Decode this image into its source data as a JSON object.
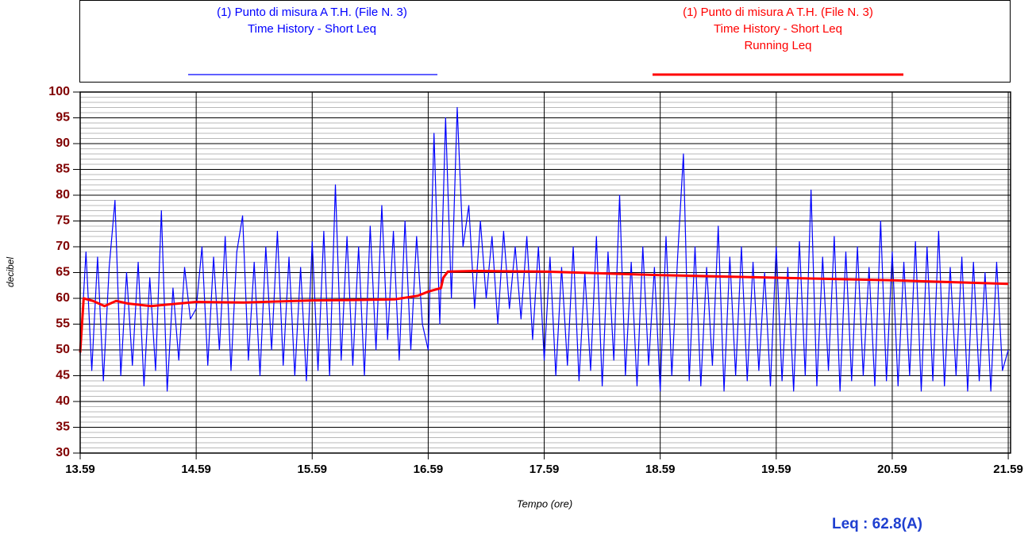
{
  "chart_data": {
    "type": "line",
    "y_label": "decibel",
    "x_label": "Tempo (ore)",
    "annotation": "Leq : 62.8(A)",
    "xlim": [
      13.59,
      21.61
    ],
    "xticks": [
      13.59,
      14.59,
      15.59,
      16.59,
      17.59,
      18.59,
      19.59,
      20.59,
      21.59
    ],
    "ylim": [
      30,
      100
    ],
    "yticks": [
      30,
      35,
      40,
      45,
      50,
      55,
      60,
      65,
      70,
      75,
      80,
      85,
      90,
      95,
      100
    ],
    "ytick_color": "#800000",
    "grid": true,
    "series": [
      {
        "name": "(1) Punto di misura A T.H.  (File N. 3)",
        "description": [
          "Time History - Short Leq"
        ],
        "color": "#0000ff",
        "width": 1.2,
        "x": [
          13.59,
          13.64,
          13.69,
          13.74,
          13.79,
          13.84,
          13.89,
          13.94,
          13.99,
          14.04,
          14.09,
          14.14,
          14.19,
          14.24,
          14.29,
          14.34,
          14.39,
          14.44,
          14.49,
          14.54,
          14.59,
          14.64,
          14.69,
          14.74,
          14.79,
          14.84,
          14.89,
          14.94,
          14.99,
          15.04,
          15.09,
          15.14,
          15.19,
          15.24,
          15.29,
          15.34,
          15.39,
          15.44,
          15.49,
          15.54,
          15.59,
          15.64,
          15.69,
          15.74,
          15.79,
          15.84,
          15.89,
          15.94,
          15.99,
          16.04,
          16.09,
          16.14,
          16.19,
          16.24,
          16.29,
          16.34,
          16.39,
          16.44,
          16.49,
          16.54,
          16.59,
          16.64,
          16.69,
          16.74,
          16.79,
          16.84,
          16.89,
          16.94,
          16.99,
          17.04,
          17.09,
          17.14,
          17.19,
          17.24,
          17.29,
          17.34,
          17.39,
          17.44,
          17.49,
          17.54,
          17.59,
          17.64,
          17.69,
          17.74,
          17.79,
          17.84,
          17.89,
          17.94,
          17.99,
          18.04,
          18.09,
          18.14,
          18.19,
          18.24,
          18.29,
          18.34,
          18.39,
          18.44,
          18.49,
          18.54,
          18.59,
          18.64,
          18.69,
          18.74,
          18.79,
          18.84,
          18.89,
          18.94,
          18.99,
          19.04,
          19.09,
          19.14,
          19.19,
          19.24,
          19.29,
          19.34,
          19.39,
          19.44,
          19.49,
          19.54,
          19.59,
          19.64,
          19.69,
          19.74,
          19.79,
          19.84,
          19.89,
          19.94,
          19.99,
          20.04,
          20.09,
          20.14,
          20.19,
          20.24,
          20.29,
          20.34,
          20.39,
          20.44,
          20.49,
          20.54,
          20.59,
          20.64,
          20.69,
          20.74,
          20.79,
          20.84,
          20.89,
          20.94,
          20.99,
          21.04,
          21.09,
          21.14,
          21.19,
          21.24,
          21.29,
          21.34,
          21.39,
          21.44,
          21.49,
          21.54,
          21.59
        ],
        "values": [
          49,
          69,
          46,
          68,
          44,
          66,
          79,
          45,
          65,
          47,
          67,
          43,
          64,
          46,
          77,
          42,
          62,
          48,
          66,
          56,
          58,
          70,
          47,
          68,
          50,
          72,
          46,
          69,
          76,
          48,
          67,
          45,
          70,
          50,
          73,
          47,
          68,
          45,
          66,
          44,
          71,
          46,
          73,
          45,
          82,
          48,
          72,
          47,
          70,
          45,
          74,
          50,
          78,
          52,
          73,
          48,
          75,
          50,
          72,
          55,
          50,
          92,
          55,
          95,
          60,
          97,
          70,
          78,
          58,
          75,
          60,
          72,
          55,
          73,
          58,
          70,
          56,
          72,
          52,
          70,
          48,
          68,
          45,
          66,
          47,
          70,
          44,
          65,
          46,
          72,
          43,
          69,
          48,
          80,
          45,
          67,
          43,
          70,
          47,
          66,
          42,
          72,
          45,
          68,
          88,
          44,
          70,
          43,
          66,
          47,
          74,
          42,
          68,
          45,
          70,
          44,
          67,
          46,
          65,
          43,
          70,
          44,
          66,
          42,
          71,
          45,
          81,
          43,
          68,
          46,
          72,
          42,
          69,
          44,
          70,
          45,
          66,
          43,
          75,
          44,
          69,
          43,
          67,
          45,
          71,
          42,
          70,
          44,
          73,
          43,
          66,
          45,
          68,
          42,
          67,
          44,
          65,
          42,
          67,
          46,
          50
        ]
      },
      {
        "name": "(1) Punto di misura A T.H.  (File N. 3)",
        "description": [
          "Time History - Short Leq",
          "Running Leq"
        ],
        "color": "#ff0000",
        "width": 3,
        "x": [
          13.59,
          13.62,
          13.7,
          13.8,
          13.9,
          14.0,
          14.2,
          14.59,
          15.0,
          15.59,
          16.0,
          16.3,
          16.5,
          16.59,
          16.7,
          16.72,
          16.76,
          17.0,
          17.59,
          18.59,
          19.59,
          20.59,
          21.59
        ],
        "values": [
          49.5,
          60,
          59.5,
          58.5,
          59.5,
          59,
          58.5,
          59.3,
          59.2,
          59.6,
          59.7,
          59.8,
          60.5,
          61.3,
          62,
          64,
          65.2,
          65.3,
          65.2,
          64.5,
          64,
          63.5,
          62.8
        ]
      }
    ]
  }
}
